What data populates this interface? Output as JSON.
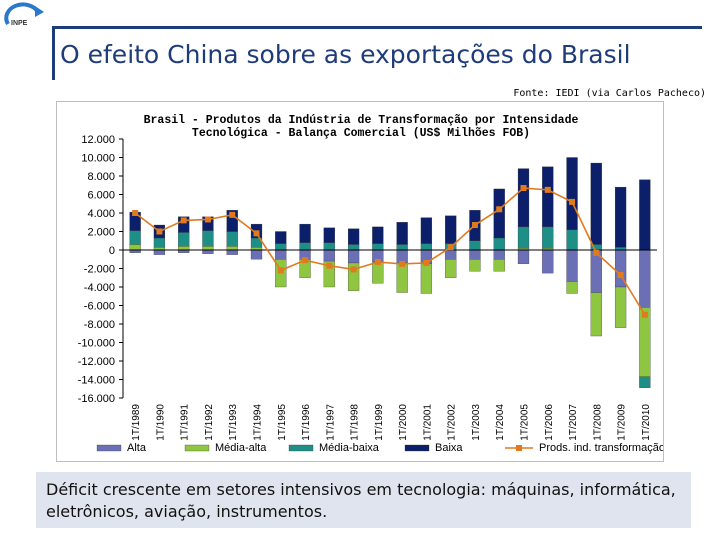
{
  "header": {
    "logo_text": "INPE",
    "title": "O efeito China sobre as exportações do Brasil",
    "source": "Fonte: IEDI (via Carlos Pacheco)"
  },
  "chart_data": {
    "type": "bar",
    "title_line1": "Brasil - Produtos da Indústria de Transformação por Intensidade",
    "title_line2": "Tecnológica - Balança Comercial (US$ Milhões FOB)",
    "categories": [
      "1T/1989",
      "1T/1990",
      "1T/1991",
      "1T/1992",
      "1T/1993",
      "1T/1994",
      "1T/1995",
      "1T/1996",
      "1T/1997",
      "1T/1998",
      "1T/1999",
      "1T/2000",
      "1T/2001",
      "1T/2002",
      "1T/2003",
      "1T/2004",
      "1T/2005",
      "1T/2006",
      "1T/2007",
      "1T/2008",
      "1T/2009",
      "1T/2010"
    ],
    "ylim": [
      -16000,
      12000
    ],
    "yticks": [
      {
        "value": 12000,
        "label": "12.000"
      },
      {
        "value": 10000,
        "label": "10.000"
      },
      {
        "value": 8000,
        "label": "8.000"
      },
      {
        "value": 6000,
        "label": "6.000"
      },
      {
        "value": 4000,
        "label": "4.000"
      },
      {
        "value": 2000,
        "label": "2.000"
      },
      {
        "value": 0,
        "label": "0"
      },
      {
        "value": -2000,
        "label": "-2.000"
      },
      {
        "value": -4000,
        "label": "-4.000"
      },
      {
        "value": -6000,
        "label": "-6.000"
      },
      {
        "value": -8000,
        "label": "-8.000"
      },
      {
        "value": -10000,
        "label": "-10.000"
      },
      {
        "value": -12000,
        "label": "-12.000"
      },
      {
        "value": -14000,
        "label": "-14.000"
      },
      {
        "value": -16000,
        "label": "-16.000"
      }
    ],
    "series": [
      {
        "name": "Alta",
        "color": "#6a6fb6",
        "values": [
          -300,
          -500,
          -300,
          -400,
          -500,
          -1000,
          -1000,
          -1000,
          -1200,
          -1400,
          -1300,
          -1400,
          -1500,
          -1000,
          -1000,
          -1000,
          -1500,
          -2500,
          -3400,
          -4600,
          -4000,
          -6200
        ]
      },
      {
        "name": "Média-alta",
        "color": "#8fc641",
        "values": [
          600,
          300,
          400,
          400,
          400,
          300,
          -3000,
          -2000,
          -2800,
          -3000,
          -2300,
          -3200,
          -3200,
          -2000,
          -1300,
          -1300,
          200,
          200,
          -1300,
          -4700,
          -4400,
          -7500
        ]
      },
      {
        "name": "Média-baixa",
        "color": "#1e8f86",
        "values": [
          1500,
          1000,
          1500,
          1700,
          1600,
          1000,
          700,
          800,
          800,
          600,
          700,
          600,
          700,
          700,
          1000,
          1300,
          2300,
          2300,
          2200,
          600,
          300,
          -1200
        ]
      },
      {
        "name": "Baixa",
        "color": "#0b1f6b",
        "values": [
          2000,
          1400,
          1700,
          1500,
          2300,
          1500,
          1300,
          2000,
          1600,
          1700,
          1800,
          2400,
          2800,
          3000,
          3300,
          5300,
          6300,
          6500,
          7800,
          8800,
          6500,
          7600
        ]
      }
    ],
    "line": {
      "name": "Prods. ind. transformação",
      "color": "#e07a1f",
      "values": [
        4000,
        2000,
        3200,
        3300,
        3800,
        1800,
        -2200,
        -1100,
        -1700,
        -2100,
        -1300,
        -1500,
        -1400,
        300,
        2700,
        4400,
        6700,
        6500,
        5200,
        -300,
        -2700,
        -7000
      ]
    },
    "legend_position": "bottom"
  },
  "footer": {
    "line1": "Déficit crescente em setores intensivos em tecnologia: máquinas, informática,",
    "line2": "eletrônicos, aviação, instrumentos."
  }
}
